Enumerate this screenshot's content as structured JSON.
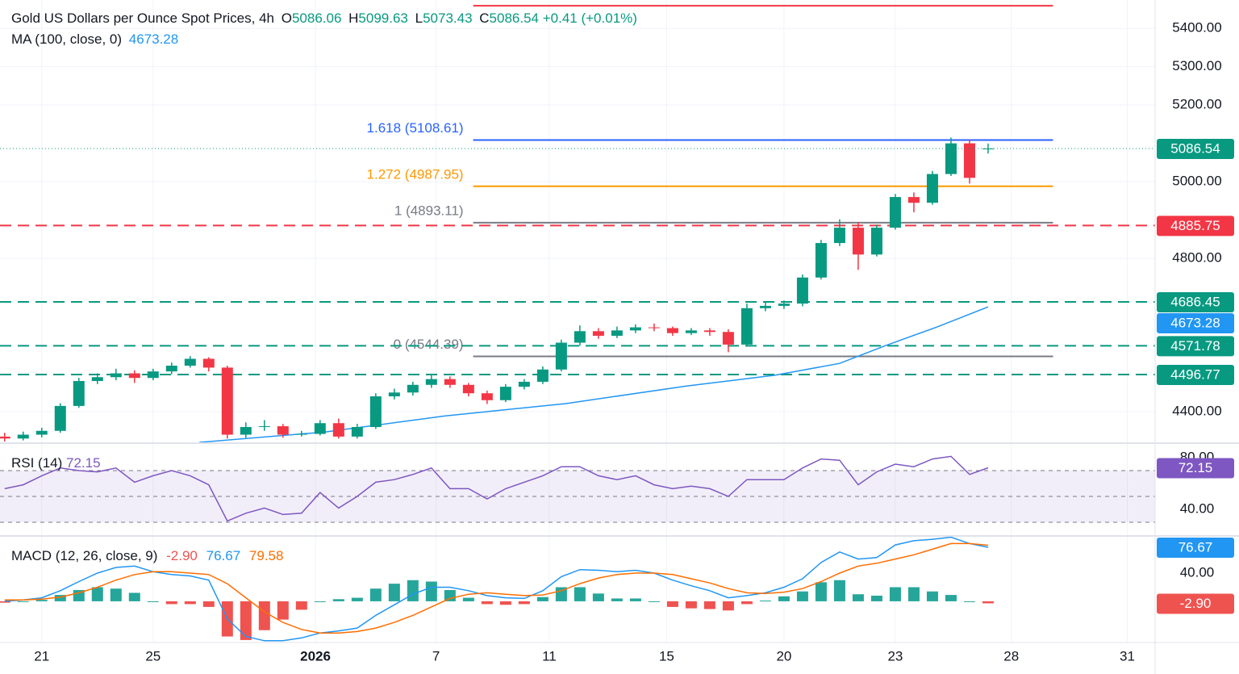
{
  "chart_data": [
    {
      "type": "candlestick",
      "title": "Gold US Dollars per Ounce Spot Prices, 4h",
      "ohlc_labels": [
        "O",
        "H",
        "L",
        "C"
      ],
      "change": {
        "value": 0.41,
        "label": "+0.41 (+0.01%)"
      },
      "x": [
        1,
        5,
        9,
        13,
        17,
        21,
        25,
        29,
        33,
        37,
        41,
        45,
        49,
        53,
        57,
        61,
        65,
        69,
        73,
        77,
        81,
        85,
        89,
        93,
        97,
        101,
        105,
        109,
        113,
        117,
        121,
        125,
        129,
        133,
        137,
        141,
        145,
        149,
        153,
        157,
        161,
        165,
        169,
        173,
        177,
        181,
        185,
        189,
        193,
        197,
        201,
        205,
        209,
        213
      ],
      "open": [
        4335,
        4330,
        4340,
        4350,
        4415,
        4480,
        4490,
        4500,
        4488,
        4505,
        4520,
        4538,
        4515,
        4340,
        4360,
        4362,
        4340,
        4342,
        4370,
        4335,
        4360,
        4440,
        4450,
        4470,
        4485,
        4470,
        4448,
        4430,
        4465,
        4478,
        4510,
        4580,
        4610,
        4598,
        4612,
        4620,
        4618,
        4605,
        4612,
        4608,
        4575,
        4670,
        4676,
        4682,
        4750,
        4840,
        4880,
        4810,
        4880,
        4960,
        4945,
        5020,
        5100,
        5086.06
      ],
      "high": [
        4345,
        4348,
        4358,
        4422,
        4488,
        4500,
        4512,
        4508,
        4512,
        4528,
        4545,
        4542,
        4520,
        4372,
        4378,
        4368,
        4350,
        4378,
        4382,
        4368,
        4448,
        4460,
        4478,
        4495,
        4492,
        4475,
        4455,
        4472,
        4485,
        4518,
        4588,
        4625,
        4618,
        4622,
        4628,
        4630,
        4622,
        4618,
        4618,
        4615,
        4682,
        4688,
        4690,
        4758,
        4848,
        4902,
        4895,
        4888,
        4968,
        4972,
        5028,
        5115,
        5110,
        5099.63
      ],
      "low": [
        4322,
        4325,
        4333,
        4345,
        4410,
        4472,
        4482,
        4475,
        4482,
        4498,
        4515,
        4505,
        4330,
        4332,
        4350,
        4332,
        4335,
        4338,
        4330,
        4330,
        4355,
        4432,
        4442,
        4462,
        4462,
        4440,
        4420,
        4425,
        4458,
        4472,
        4505,
        4572,
        4590,
        4592,
        4605,
        4610,
        4598,
        4600,
        4598,
        4555,
        4570,
        4662,
        4668,
        4675,
        4745,
        4832,
        4770,
        4805,
        4875,
        4920,
        4940,
        5015,
        4995,
        5073.43
      ],
      "close": [
        4330,
        4340,
        4350,
        4415,
        4480,
        4490,
        4500,
        4488,
        4505,
        4520,
        4538,
        4515,
        4340,
        4360,
        4362,
        4340,
        4342,
        4370,
        4335,
        4360,
        4440,
        4450,
        4470,
        4485,
        4470,
        4448,
        4430,
        4465,
        4478,
        4510,
        4580,
        4610,
        4598,
        4612,
        4620,
        4618,
        4605,
        4612,
        4608,
        4575,
        4670,
        4676,
        4682,
        4750,
        4840,
        4880,
        4810,
        4880,
        4960,
        4945,
        5020,
        5100,
        5010,
        5086.54
      ],
      "up_color": "#089981",
      "down_color": "#f23645",
      "ma": {
        "name": "MA (100, close, 0)",
        "color": "#2196f3",
        "x": [
          43,
          70,
          96,
          122,
          148,
          167,
          181,
          191,
          202,
          213
        ],
        "values": [
          4320,
          4347,
          4389,
          4421,
          4467,
          4495,
          4526,
          4573,
          4621,
          4673.28
        ]
      },
      "fib_levels": [
        {
          "value": 5108.61,
          "label": "1.618 (5108.61)"
        },
        {
          "value": 4987.95,
          "label": "1.272 (4987.95)"
        },
        {
          "value": 4893.11,
          "label": "1 (4893.11)"
        },
        {
          "value": 4544.39,
          "label": "0 (4544.39)"
        }
      ],
      "fib_colors": [
        "#2962ff",
        "#ff9800",
        "#787b86",
        "#787b86"
      ],
      "fib_range_x": [
        102,
        227
      ],
      "top_line": {
        "value": 5459,
        "color": "#f23645"
      },
      "price_lines": [
        4885.75,
        4686.45,
        4571.78,
        4496.77
      ],
      "price_line_colors": [
        "#f23645",
        "#089981",
        "#089981",
        "#089981"
      ],
      "xlim": [
        0,
        249
      ],
      "xticks": [
        {
          "value": 9,
          "label": "21"
        },
        {
          "value": 33,
          "label": "25"
        },
        {
          "value": 68,
          "label": "2026"
        },
        {
          "value": 94,
          "label": "7"
        },
        {
          "value": 118.4,
          "label": "11"
        },
        {
          "value": 143.7,
          "label": "15"
        },
        {
          "value": 169,
          "label": "20"
        },
        {
          "value": 193,
          "label": "23"
        },
        {
          "value": 218,
          "label": "28"
        },
        {
          "value": 243,
          "label": "31"
        }
      ],
      "ylim": [
        4320,
        5474
      ],
      "yticks": [
        {
          "value": 4400,
          "label": "4400.00"
        },
        {
          "value": 4800,
          "label": "4800.00"
        },
        {
          "value": 5000,
          "label": "5000.00"
        },
        {
          "value": 5200,
          "label": "5200.00"
        },
        {
          "value": 5300,
          "label": "5300.00"
        },
        {
          "value": 5400,
          "label": "5400.00"
        }
      ],
      "grid": true
    },
    {
      "type": "rsi",
      "title": "RSI (14)",
      "color": "#7e57c2",
      "values": [
        56,
        59,
        66,
        72,
        70,
        69,
        72,
        61,
        66,
        70,
        66,
        59,
        31,
        37,
        41,
        36,
        37,
        53,
        41,
        50,
        61,
        63,
        67,
        72,
        56,
        56,
        48,
        56,
        61,
        66,
        73,
        73,
        66,
        63,
        66,
        59,
        56,
        58,
        56,
        50,
        63,
        63,
        63,
        72,
        79,
        78,
        59,
        69,
        75,
        73,
        79,
        81,
        67,
        72.15
      ],
      "levels": [
        70,
        50,
        30
      ],
      "ylim": [
        20,
        90.6
      ],
      "yticks": [
        {
          "value": 40,
          "label": "40.00"
        },
        {
          "value": 80,
          "label": "80.00"
        }
      ]
    },
    {
      "type": "macd",
      "title": "MACD (12, 26, close, 9)",
      "series": [
        {
          "color": "#2196f3",
          "values": [
            0,
            2,
            5,
            15,
            28,
            40,
            48,
            50,
            42,
            38,
            36,
            30,
            -25,
            -50,
            -56,
            -56,
            -52,
            -45,
            -42,
            -38,
            -20,
            -5,
            10,
            20,
            20,
            15,
            8,
            5,
            4,
            15,
            35,
            45,
            44,
            42,
            44,
            40,
            30,
            22,
            15,
            5,
            8,
            12,
            20,
            32,
            55,
            70,
            60,
            62,
            80,
            86,
            88,
            91,
            82,
            76.67
          ]
        },
        {
          "color": "#ff6d00",
          "values": [
            2,
            2,
            3,
            6,
            12,
            20,
            30,
            38,
            42,
            42,
            40,
            38,
            25,
            5,
            -15,
            -30,
            -40,
            -45,
            -45,
            -43,
            -38,
            -30,
            -20,
            -8,
            4,
            10,
            12,
            10,
            8,
            9,
            15,
            25,
            33,
            38,
            40,
            40,
            38,
            32,
            26,
            18,
            12,
            11,
            13,
            18,
            28,
            40,
            50,
            54,
            60,
            66,
            74,
            82,
            82,
            79.58
          ]
        }
      ],
      "histogram": {
        "values": [
          -2,
          0,
          2,
          9,
          16,
          20,
          18,
          12,
          0,
          -4,
          -4,
          -8,
          -50,
          -55,
          -41,
          -26,
          -12,
          0,
          3,
          5,
          18,
          25,
          30,
          28,
          16,
          5,
          -4,
          -5,
          -4,
          6,
          20,
          20,
          11,
          4,
          4,
          0,
          -8,
          -10,
          -11,
          -13,
          -4,
          1,
          7,
          14,
          27,
          30,
          10,
          8,
          20,
          20,
          14,
          9,
          0,
          -2.9
        ],
        "last": {
          "value": -2.9,
          "label": "-2.90"
        },
        "up_color": "#26a69a",
        "down_color": "#ef5350"
      },
      "ylim": [
        -57.4,
        91.6
      ],
      "yticks": [
        {
          "value": 40,
          "label": "40.00"
        }
      ]
    }
  ]
}
